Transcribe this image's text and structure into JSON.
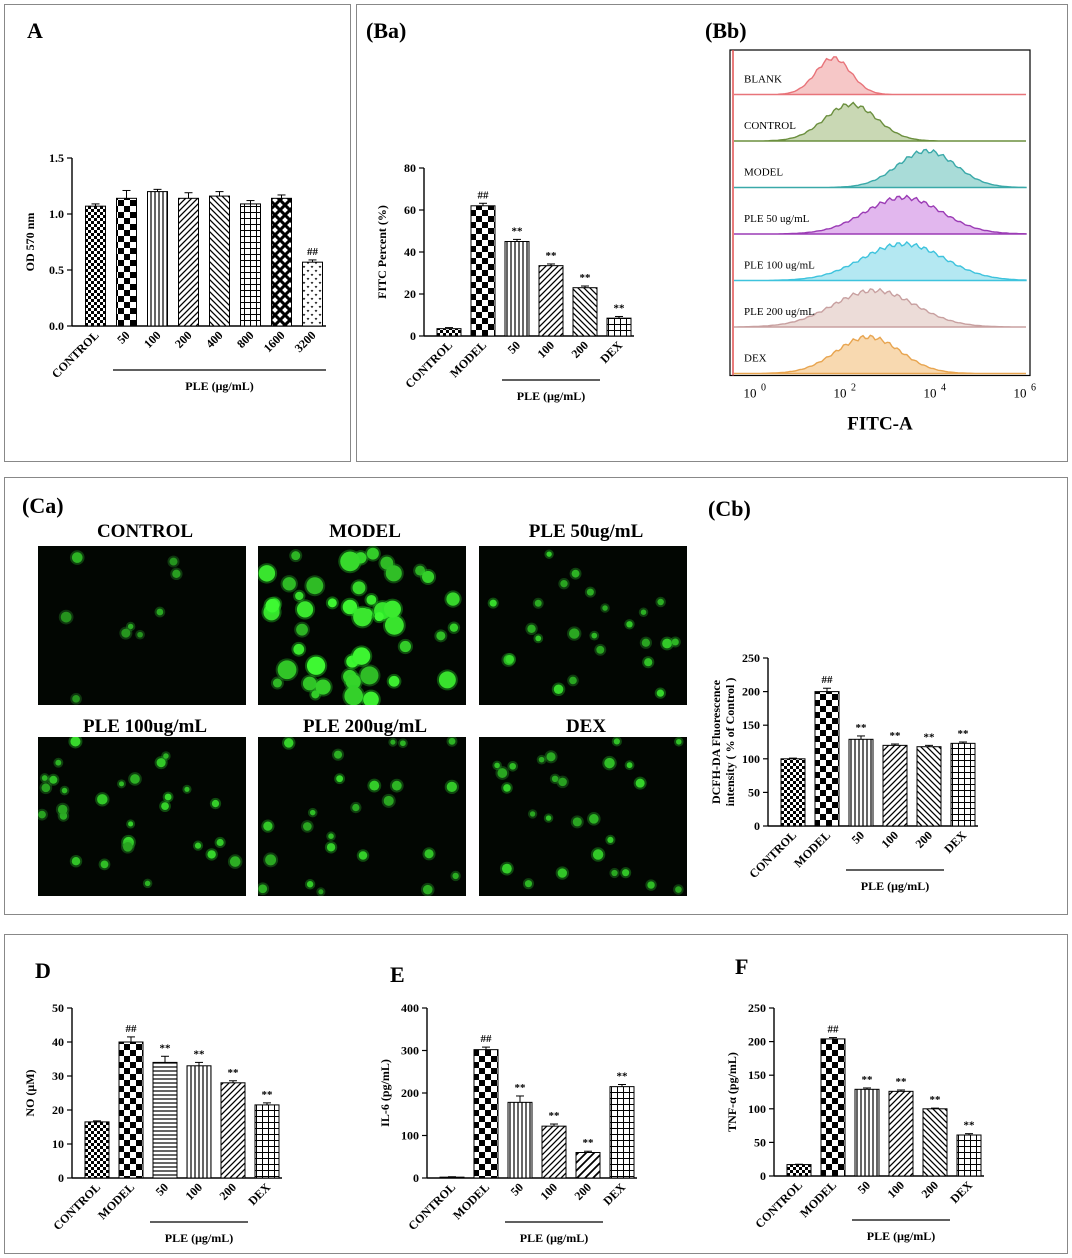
{
  "panels": {
    "A": "A",
    "Ba": "(Ba)",
    "Bb": "(Bb)",
    "Ca": "(Ca)",
    "Cb": "(Cb)",
    "D": "D",
    "E": "E",
    "F": "F"
  },
  "patterns": [
    "checker-small",
    "checker-big",
    "vlines",
    "diag-right",
    "diag-left",
    "diag-right-wide",
    "grid",
    "crosshatch",
    "dots",
    "hlines"
  ],
  "chart_data": [
    {
      "id": "A",
      "type": "bar",
      "ylabel": "OD 570 nm",
      "xlabel": "PLE (μg/mL)",
      "ylim": [
        0,
        1.5
      ],
      "yticks": [
        "0.0",
        "0.5",
        "1.0",
        "1.5"
      ],
      "categories": [
        "CONTROL",
        "50",
        "100",
        "200",
        "400",
        "800",
        "1600",
        "3200"
      ],
      "values": [
        1.07,
        1.14,
        1.2,
        1.14,
        1.16,
        1.09,
        1.14,
        0.57
      ],
      "errors": [
        0.02,
        0.07,
        0.02,
        0.05,
        0.04,
        0.03,
        0.03,
        0.02
      ],
      "annotations": [
        "",
        "",
        "",
        "",
        "",
        "",
        "",
        "##"
      ],
      "patterns": [
        "checker-small",
        "checker-big",
        "vlines",
        "diag-right",
        "diag-left",
        "grid",
        "crosshatch",
        "dots"
      ],
      "group_line": [
        1,
        7
      ]
    },
    {
      "id": "Ba",
      "type": "bar",
      "ylabel": "FITC Percent (%)",
      "xlabel": "PLE (μg/mL)",
      "ylim": [
        0,
        80
      ],
      "yticks": [
        "0",
        "20",
        "40",
        "60",
        "80"
      ],
      "categories": [
        "CONTROL",
        "MODEL",
        "50",
        "100",
        "200",
        "DEX"
      ],
      "values": [
        3.5,
        62,
        45,
        33.5,
        23,
        8.5
      ],
      "errors": [
        0.5,
        1.2,
        1.0,
        0.8,
        0.8,
        0.8
      ],
      "annotations": [
        "",
        "##",
        "**",
        "**",
        "**",
        "**"
      ],
      "patterns": [
        "checker-small",
        "checker-big",
        "vlines",
        "diag-right",
        "diag-left",
        "grid"
      ],
      "group_line": [
        2,
        4
      ]
    },
    {
      "id": "Cb",
      "type": "bar",
      "ylabel": "DCFH-DA Fluorescence intensity ( % of Control )",
      "xlabel": "PLE (μg/mL)",
      "ylim": [
        0,
        250
      ],
      "yticks": [
        "0",
        "50",
        "100",
        "150",
        "200",
        "250"
      ],
      "categories": [
        "CONTROL",
        "MODEL",
        "50",
        "100",
        "200",
        "DEX"
      ],
      "values": [
        100,
        200,
        129,
        120,
        118,
        123
      ],
      "errors": [
        1,
        5,
        5,
        2,
        2,
        2
      ],
      "annotations": [
        "",
        "##",
        "**",
        "**",
        "**",
        "**"
      ],
      "patterns": [
        "checker-small",
        "checker-big",
        "vlines",
        "diag-right",
        "diag-left",
        "grid"
      ],
      "group_line": [
        2,
        4
      ]
    },
    {
      "id": "D",
      "type": "bar",
      "ylabel": "NO (μM)",
      "xlabel": "PLE (μg/mL)",
      "ylim": [
        0,
        50
      ],
      "yticks": [
        "0",
        "10",
        "20",
        "30",
        "40",
        "50"
      ],
      "categories": [
        "CONTROL",
        "MODEL",
        "50",
        "100",
        "200",
        "DEX"
      ],
      "values": [
        16.5,
        40,
        34,
        33,
        28,
        21.5
      ],
      "errors": [
        0.3,
        1.5,
        1.8,
        1.0,
        0.6,
        0.6
      ],
      "annotations": [
        "",
        "##",
        "**",
        "**",
        "**",
        "**"
      ],
      "patterns": [
        "checker-small",
        "checker-big",
        "hlines",
        "vlines",
        "diag-right",
        "grid"
      ],
      "group_line": [
        2,
        4
      ]
    },
    {
      "id": "E",
      "type": "bar",
      "ylabel": "IL-6 (pg/mL)",
      "xlabel": "PLE (μg/mL)",
      "ylim": [
        0,
        400
      ],
      "yticks": [
        "0",
        "100",
        "200",
        "300",
        "400"
      ],
      "categories": [
        "CONTROL",
        "MODEL",
        "50",
        "100",
        "200",
        "DEX"
      ],
      "values": [
        2,
        302,
        178,
        122,
        60,
        215
      ],
      "errors": [
        1,
        6,
        15,
        5,
        3,
        5
      ],
      "annotations": [
        "",
        "##",
        "**",
        "**",
        "**",
        "**"
      ],
      "patterns": [
        "checker-small",
        "checker-big",
        "vlines",
        "diag-right",
        "diag-right-wide",
        "grid"
      ],
      "group_line": [
        2,
        4
      ]
    },
    {
      "id": "F",
      "type": "bar",
      "ylabel": "TNF-α (pg/mL)",
      "xlabel": "PLE (μg/mL)",
      "ylim": [
        0,
        250
      ],
      "yticks": [
        "0",
        "50",
        "100",
        "150",
        "200",
        "250"
      ],
      "categories": [
        "CONTROL",
        "MODEL",
        "50",
        "100",
        "200",
        "DEX"
      ],
      "values": [
        17,
        204,
        129,
        126,
        100,
        61
      ],
      "errors": [
        0.5,
        2,
        2,
        2,
        1,
        2
      ],
      "annotations": [
        "",
        "##",
        "**",
        "**",
        "**",
        "**"
      ],
      "patterns": [
        "checker-small",
        "checker-big",
        "vlines",
        "diag-right",
        "diag-left",
        "grid"
      ],
      "group_line": [
        2,
        4
      ]
    }
  ],
  "flow": {
    "xlabel": "FITC-A",
    "tick_labels": [
      "10^0",
      "10^2",
      "10^4",
      "10^6"
    ],
    "tick_base": "10",
    "tick_exps": [
      "0",
      "2",
      "4",
      "6"
    ],
    "rows": [
      {
        "label": "BLANK",
        "color": "#e8747a",
        "fill": "#f6c7c7",
        "peak": 0.34,
        "width": 0.06
      },
      {
        "label": "CONTROL",
        "color": "#6b8f3e",
        "fill": "#c9d8b4",
        "peak": 0.4,
        "width": 0.09
      },
      {
        "label": "MODEL",
        "color": "#3aa9a9",
        "fill": "#a9dcd8",
        "peak": 0.66,
        "width": 0.1
      },
      {
        "label": "PLE 50 ug/mL",
        "color": "#9b3cb5",
        "fill": "#e2b7ee",
        "peak": 0.58,
        "width": 0.13
      },
      {
        "label": "PLE 100 ug/mL",
        "color": "#3ec3dd",
        "fill": "#b4e8f2",
        "peak": 0.58,
        "width": 0.14
      },
      {
        "label": "PLE 200 ug/mL",
        "color": "#c8a0a0",
        "fill": "#ecdcd8",
        "peak": 0.48,
        "width": 0.14
      },
      {
        "label": "DEX",
        "color": "#e8a550",
        "fill": "#f8d9b0",
        "peak": 0.46,
        "width": 0.11
      }
    ]
  },
  "micrographs": [
    {
      "title": "CONTROL",
      "cells": 9,
      "intensity": 0.55
    },
    {
      "title": "MODEL",
      "cells": 48,
      "intensity": 1.0
    },
    {
      "title": "PLE 50ug/mL",
      "cells": 24,
      "intensity": 0.8
    },
    {
      "title": "PLE 100ug/mL",
      "cells": 28,
      "intensity": 0.8
    },
    {
      "title": "PLE 200ug/mL",
      "cells": 24,
      "intensity": 0.8
    },
    {
      "title": "DEX",
      "cells": 26,
      "intensity": 0.78
    }
  ]
}
